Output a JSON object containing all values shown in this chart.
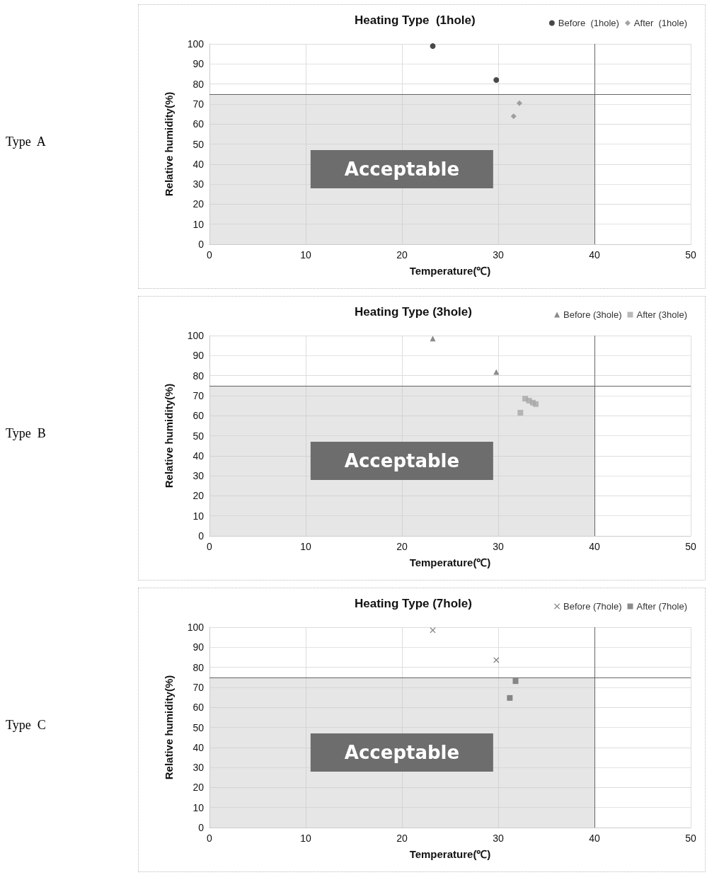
{
  "chart_data": [
    {
      "type": "scatter",
      "title": "Heating Type  (1hole)",
      "xlabel": "Temperature(℃)",
      "ylabel": "Relative humidity(%)",
      "annotations": [
        "Type  A"
      ],
      "xlim": [
        0,
        50
      ],
      "xticks": [
        0,
        10,
        20,
        30,
        40,
        50
      ],
      "ylim": [
        0,
        100
      ],
      "yticks": [
        0,
        10,
        20,
        30,
        40,
        50,
        60,
        70,
        80,
        90,
        100
      ],
      "grid": true,
      "legend": "top right",
      "ref_lines": [
        {
          "axis": "x",
          "value": 40
        },
        {
          "axis": "y",
          "value": 75
        }
      ],
      "bands": [
        {
          "axis": "y",
          "from": 0,
          "to": 75,
          "label": "Acceptable"
        }
      ],
      "series": [
        {
          "name": "Before  (1hole)",
          "color": "#1a1a1a",
          "marker": "circle",
          "x": [
            23.2,
            29.8
          ],
          "values": [
            98.9,
            82
          ]
        },
        {
          "name": "After  (1hole)",
          "color": "#8c8c8c",
          "marker": "diamond",
          "x": [
            32.2,
            31.6
          ],
          "values": [
            70.4,
            63.9
          ]
        }
      ]
    },
    {
      "type": "scatter",
      "title": "Heating Type (3hole)",
      "xlabel": "Temperature(℃)",
      "ylabel": "Relative humidity(%)",
      "annotations": [
        "Type  B"
      ],
      "xlim": [
        0,
        50
      ],
      "xticks": [
        0,
        10,
        20,
        30,
        40,
        50
      ],
      "ylim": [
        0,
        100
      ],
      "yticks": [
        0,
        10,
        20,
        30,
        40,
        50,
        60,
        70,
        80,
        90,
        100
      ],
      "grid": true,
      "legend": "top right",
      "ref_lines": [
        {
          "axis": "x",
          "value": 40
        },
        {
          "axis": "y",
          "value": 75
        }
      ],
      "bands": [
        {
          "axis": "y",
          "from": 0,
          "to": 75,
          "label": "Acceptable"
        }
      ],
      "series": [
        {
          "name": "Before (3hole)",
          "color": "#6e6e6e",
          "marker": "triangle",
          "x": [
            23.2,
            29.8
          ],
          "values": [
            98.5,
            81.8
          ]
        },
        {
          "name": "After (3hole)",
          "color": "#a8a8a8",
          "marker": "square",
          "x": [
            32.8,
            33.2,
            33.6,
            33.9,
            32.3
          ],
          "values": [
            68.5,
            67.5,
            66.5,
            65.8,
            61.5
          ]
        }
      ]
    },
    {
      "type": "scatter",
      "title": "Heating Type (7hole)",
      "xlabel": "Temperature(℃)",
      "ylabel": "Relative humidity(%)",
      "annotations": [
        "Type  C"
      ],
      "xlim": [
        0,
        50
      ],
      "xticks": [
        0,
        10,
        20,
        30,
        40,
        50
      ],
      "ylim": [
        0,
        100
      ],
      "yticks": [
        0,
        10,
        20,
        30,
        40,
        50,
        60,
        70,
        80,
        90,
        100
      ],
      "grid": true,
      "legend": "top right",
      "ref_lines": [
        {
          "axis": "x",
          "value": 40
        },
        {
          "axis": "y",
          "value": 75
        }
      ],
      "bands": [
        {
          "axis": "y",
          "from": 0,
          "to": 75,
          "label": "Acceptable"
        }
      ],
      "series": [
        {
          "name": "Before (7hole)",
          "color": "#555555",
          "marker": "cross",
          "x": [
            23.2,
            29.8
          ],
          "values": [
            98.5,
            83.6
          ]
        },
        {
          "name": "After (7hole)",
          "color": "#6e6e6e",
          "marker": "square",
          "x": [
            31.8,
            31.2
          ],
          "values": [
            73.1,
            64.7
          ]
        }
      ]
    }
  ]
}
